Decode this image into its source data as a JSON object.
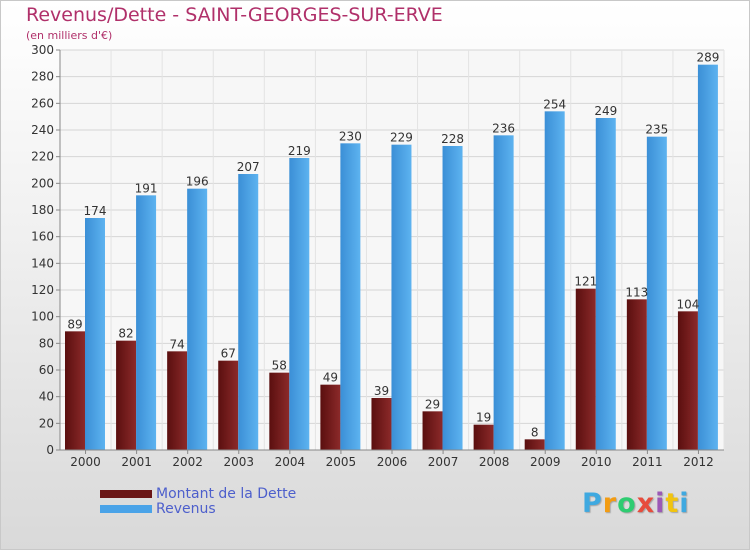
{
  "header": {
    "title": "Revenus/Dette - SAINT-GEORGES-SUR-ERVE",
    "subtitle": "(en milliers d'€)"
  },
  "legend": {
    "debt_label": "Montant de la Dette",
    "revenue_label": "Revenus"
  },
  "brand": {
    "letters": [
      "P",
      "r",
      "o",
      "x",
      "i",
      "t",
      "i"
    ],
    "colors": [
      "#3fa9e0",
      "#f39c12",
      "#2ecc71",
      "#e74c3c",
      "#9b59b6",
      "#f1c40f",
      "#3fa9e0"
    ]
  },
  "colors": {
    "debt": "#7a1d1d",
    "revenue": "#4aa3e8",
    "title": "#b0306a"
  },
  "chart_data": {
    "type": "bar",
    "categories": [
      "2000",
      "2001",
      "2002",
      "2003",
      "2004",
      "2005",
      "2006",
      "2007",
      "2008",
      "2009",
      "2010",
      "2011",
      "2012"
    ],
    "series": [
      {
        "name": "Montant de la Dette",
        "values": [
          89,
          82,
          74,
          67,
          58,
          49,
          39,
          29,
          19,
          8,
          121,
          113,
          104
        ]
      },
      {
        "name": "Revenus",
        "values": [
          174,
          191,
          196,
          207,
          219,
          230,
          229,
          228,
          236,
          254,
          249,
          235,
          289
        ]
      }
    ],
    "ylim": [
      0,
      300
    ],
    "yticks": [
      0,
      20,
      40,
      60,
      80,
      100,
      120,
      140,
      160,
      180,
      200,
      220,
      240,
      260,
      280,
      300
    ],
    "grid": true
  }
}
